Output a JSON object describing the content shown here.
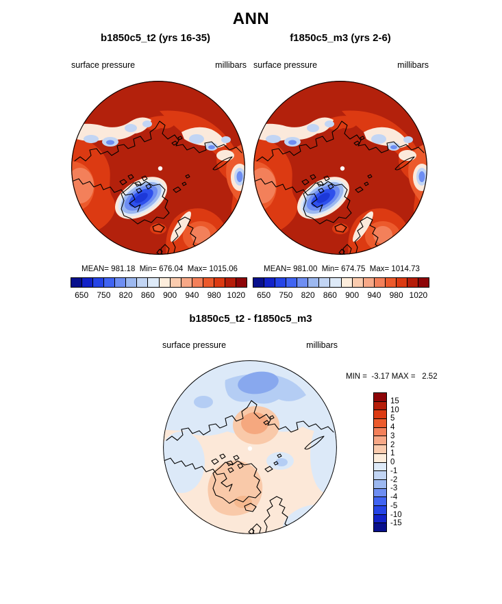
{
  "title": "ANN",
  "panels": {
    "left": {
      "title": "b1850c5_t2 (yrs 16-35)",
      "var_label": "surface pressure",
      "units": "millibars",
      "stats": "MEAN= 981.18  Min= 676.04  Max= 1015.06"
    },
    "right": {
      "title": "f1850c5_m3 (yrs 2-6)",
      "var_label": "surface pressure",
      "units": "millibars",
      "stats": "MEAN= 981.00  Min= 674.75  Max= 1014.73"
    },
    "diff": {
      "title": "b1850c5_t2 - f1850c5_m3",
      "var_label": "surface pressure",
      "units": "millibars",
      "stats": "MIN =  -3.17 MAX =   2.52"
    }
  },
  "colorbar_horizontal": {
    "tick_labels": [
      "650",
      "750",
      "820",
      "860",
      "900",
      "940",
      "980",
      "1020"
    ],
    "colors": [
      "#08108C",
      "#1222C8",
      "#2544E6",
      "#4064F2",
      "#6E8EF2",
      "#9CB8F0",
      "#C2D5F4",
      "#DEEAF8",
      "#FDEDDC",
      "#FACBAE",
      "#F7A887",
      "#F3805A",
      "#EC5A2C",
      "#DC3A12",
      "#B51D09",
      "#8D0508"
    ]
  },
  "colorbar_vertical": {
    "tick_labels": [
      "15",
      "10",
      "5",
      "4",
      "3",
      "2",
      "1",
      "0",
      "-1",
      "-2",
      "-3",
      "-4",
      "-5",
      "-10",
      "-15"
    ],
    "colors": [
      "#8D0508",
      "#B51D09",
      "#DC3A12",
      "#EC5A2C",
      "#F3805A",
      "#F7A887",
      "#FACBAE",
      "#FDEDDC",
      "#DEEAF8",
      "#C2D5F4",
      "#9CB8F0",
      "#6E8EF2",
      "#4064F2",
      "#2544E6",
      "#1222C8",
      "#08108C"
    ]
  },
  "chart_data": [
    {
      "type": "heatmap",
      "subtype": "north-polar-stereographic contour map",
      "title": "b1850c5_t2 (yrs 16-35)",
      "variable": "surface pressure",
      "units": "millibars",
      "stats": {
        "mean": 981.18,
        "min": 676.04,
        "max": 1015.06
      },
      "colorbar_ticks": [
        650,
        750,
        820,
        860,
        900,
        940,
        980,
        1020
      ],
      "n_color_levels": 16,
      "legend_position": "bottom"
    },
    {
      "type": "heatmap",
      "subtype": "north-polar-stereographic contour map",
      "title": "f1850c5_m3 (yrs 2-6)",
      "variable": "surface pressure",
      "units": "millibars",
      "stats": {
        "mean": 981.0,
        "min": 674.75,
        "max": 1014.73
      },
      "colorbar_ticks": [
        650,
        750,
        820,
        860,
        900,
        940,
        980,
        1020
      ],
      "n_color_levels": 16,
      "legend_position": "bottom"
    },
    {
      "type": "heatmap",
      "subtype": "north-polar-stereographic difference map",
      "title": "b1850c5_t2 - f1850c5_m3",
      "variable": "surface pressure",
      "units": "millibars",
      "stats": {
        "min": -3.17,
        "max": 2.52
      },
      "colorbar_ticks": [
        15,
        10,
        5,
        4,
        3,
        2,
        1,
        0,
        -1,
        -2,
        -3,
        -4,
        -5,
        -10,
        -15
      ],
      "n_color_levels": 16,
      "legend_position": "right"
    }
  ]
}
